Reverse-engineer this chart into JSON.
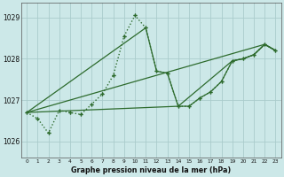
{
  "title": "Graphe pression niveau de la mer (hPa)",
  "background_color": "#cce8e8",
  "grid_color": "#aacccc",
  "line_color": "#2d6b2d",
  "xlim": [
    -0.5,
    23.5
  ],
  "ylim": [
    1025.6,
    1029.35
  ],
  "yticks": [
    1026,
    1027,
    1028,
    1029
  ],
  "xticks": [
    0,
    1,
    2,
    3,
    4,
    5,
    6,
    7,
    8,
    9,
    10,
    11,
    12,
    13,
    14,
    15,
    16,
    17,
    18,
    19,
    20,
    21,
    22,
    23
  ],
  "series": [
    {
      "x": [
        0,
        1,
        2,
        3,
        4,
        5,
        6,
        7,
        8,
        9,
        10,
        11,
        12,
        13,
        14,
        15,
        16,
        17,
        18,
        19,
        20,
        21,
        22,
        23
      ],
      "y": [
        1026.7,
        1026.55,
        1026.2,
        1026.75,
        1026.7,
        1026.65,
        1026.9,
        1027.15,
        1027.6,
        1028.55,
        1029.05,
        1028.75,
        1027.7,
        1027.65,
        1026.85,
        1026.85,
        1027.05,
        1027.2,
        1027.45,
        1027.95,
        1028.0,
        1028.1,
        1028.35,
        1028.2
      ],
      "style": "dotted",
      "lw": 1.0
    },
    {
      "x": [
        0,
        22,
        23
      ],
      "y": [
        1026.7,
        1028.35,
        1028.2
      ],
      "style": "solid",
      "lw": 0.9
    },
    {
      "x": [
        0,
        14,
        19,
        20,
        21,
        22,
        23
      ],
      "y": [
        1026.7,
        1026.85,
        1027.95,
        1028.0,
        1028.1,
        1028.35,
        1028.2
      ],
      "style": "solid",
      "lw": 0.9
    },
    {
      "x": [
        0,
        11,
        12,
        13,
        14,
        15,
        16,
        17,
        18,
        19,
        20,
        21,
        22,
        23
      ],
      "y": [
        1026.7,
        1028.75,
        1027.7,
        1027.65,
        1026.85,
        1026.85,
        1027.05,
        1027.2,
        1027.45,
        1027.95,
        1028.0,
        1028.1,
        1028.35,
        1028.2
      ],
      "style": "solid",
      "lw": 0.9
    }
  ],
  "marker_points": [
    [
      0,
      1026.7
    ],
    [
      1,
      1026.55
    ],
    [
      2,
      1026.2
    ],
    [
      3,
      1026.75
    ],
    [
      4,
      1026.7
    ],
    [
      5,
      1026.65
    ],
    [
      6,
      1026.9
    ],
    [
      7,
      1027.15
    ],
    [
      8,
      1027.6
    ],
    [
      9,
      1028.55
    ],
    [
      10,
      1029.05
    ],
    [
      11,
      1028.75
    ],
    [
      12,
      1027.7
    ],
    [
      13,
      1027.65
    ],
    [
      14,
      1026.85
    ],
    [
      15,
      1026.85
    ],
    [
      16,
      1027.05
    ],
    [
      17,
      1027.2
    ],
    [
      18,
      1027.45
    ],
    [
      19,
      1027.95
    ],
    [
      20,
      1028.0
    ],
    [
      21,
      1028.1
    ],
    [
      22,
      1028.35
    ],
    [
      23,
      1028.2
    ]
  ]
}
